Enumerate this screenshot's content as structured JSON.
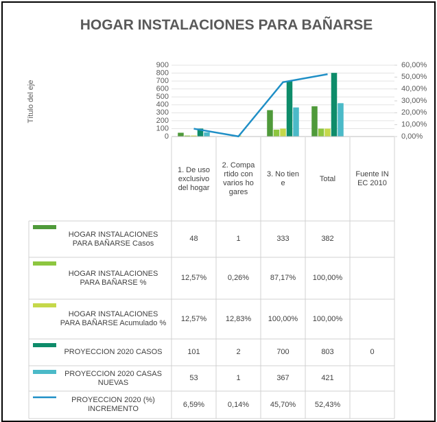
{
  "chart_data": {
    "type": "bar",
    "title": "HOGAR INSTALACIONES PARA BAÑARSE",
    "y_axis_label": "Título del eje",
    "categories": [
      "1. De uso exclusivo del hogar",
      "2. Compartido con varios hogares",
      "3. No tiene",
      "Total",
      "Fuente INEC 2010"
    ],
    "ylim": [
      0,
      900
    ],
    "yticks": [
      0,
      100,
      200,
      300,
      400,
      500,
      600,
      700,
      800,
      900
    ],
    "y2lim": [
      0,
      60
    ],
    "y2ticks": [
      {
        "value": 0,
        "label": "0,00%"
      },
      {
        "value": 10,
        "label": "10,00%"
      },
      {
        "value": 20,
        "label": "20,00%"
      },
      {
        "value": 30,
        "label": "30,00%"
      },
      {
        "value": 40,
        "label": "40,00%"
      },
      {
        "value": 50,
        "label": "50,00%"
      },
      {
        "value": 60,
        "label": "60,00%"
      }
    ],
    "series": [
      {
        "name": "HOGAR INSTALACIONES PARA BAÑARSE Casos",
        "color": "#4f9a3a",
        "values": [
          48,
          1,
          333,
          382,
          null
        ]
      },
      {
        "name": "HOGAR INSTALACIONES PARA BAÑARSE %",
        "color": "#8dc63f",
        "values": [
          12.57,
          0.26,
          87.17,
          100,
          null
        ],
        "value_labels": [
          "12,57%",
          "0,26%",
          "87,17%",
          "100,00%",
          null
        ]
      },
      {
        "name": "HOGAR INSTALACIONES PARA BAÑARSE Acumulado %",
        "color": "#c5d84a",
        "values": [
          12.57,
          12.83,
          100,
          100,
          null
        ],
        "value_labels": [
          "12,57%",
          "12,83%",
          "100,00%",
          "100,00%",
          null
        ]
      },
      {
        "name": "PROYECCION 2020 CASOS",
        "color": "#0e8c6a",
        "values": [
          101,
          2,
          700,
          803,
          0
        ]
      },
      {
        "name": "PROYECCION 2020 CASAS NUEVAS",
        "color": "#4bbac8",
        "values": [
          53,
          1,
          367,
          421,
          null
        ]
      },
      {
        "name": "PROYECCION 2020 (%) INCREMENTO",
        "color": "#1f8fc6",
        "type": "line",
        "axis": "y2",
        "values": [
          6.59,
          0.14,
          45.7,
          52.43,
          null
        ],
        "value_labels": [
          "6,59%",
          "0,14%",
          "45,70%",
          "52,43%",
          null
        ]
      }
    ]
  }
}
